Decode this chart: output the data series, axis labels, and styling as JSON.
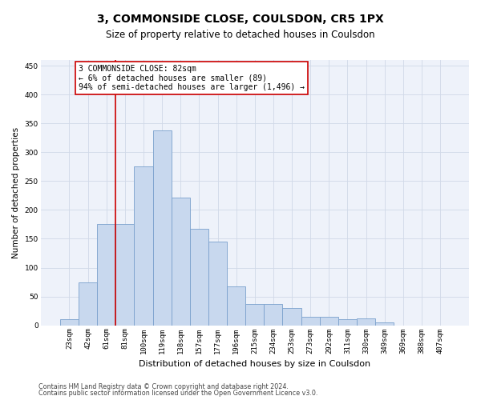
{
  "title": "3, COMMONSIDE CLOSE, COULSDON, CR5 1PX",
  "subtitle": "Size of property relative to detached houses in Coulsdon",
  "xlabel": "Distribution of detached houses by size in Coulsdon",
  "ylabel": "Number of detached properties",
  "bar_color": "#c8d8ee",
  "bar_edge_color": "#7aa0cc",
  "bar_categories": [
    "23sqm",
    "42sqm",
    "61sqm",
    "81sqm",
    "100sqm",
    "119sqm",
    "138sqm",
    "157sqm",
    "177sqm",
    "196sqm",
    "215sqm",
    "234sqm",
    "253sqm",
    "273sqm",
    "292sqm",
    "311sqm",
    "330sqm",
    "349sqm",
    "369sqm",
    "388sqm",
    "407sqm"
  ],
  "bar_values": [
    10,
    75,
    175,
    175,
    275,
    338,
    222,
    167,
    145,
    68,
    37,
    37,
    30,
    15,
    15,
    10,
    12,
    5,
    0,
    0,
    0
  ],
  "vline_x_index": 3,
  "vline_color": "#cc0000",
  "annotation_line1": "3 COMMONSIDE CLOSE: 82sqm",
  "annotation_line2": "← 6% of detached houses are smaller (89)",
  "annotation_line3": "94% of semi-detached houses are larger (1,496) →",
  "annotation_box_color": "#ffffff",
  "annotation_box_edge": "#cc0000",
  "ylim": [
    0,
    460
  ],
  "yticks": [
    0,
    50,
    100,
    150,
    200,
    250,
    300,
    350,
    400,
    450
  ],
  "footnote1": "Contains HM Land Registry data © Crown copyright and database right 2024.",
  "footnote2": "Contains public sector information licensed under the Open Government Licence v3.0.",
  "background_color": "#eef2fa",
  "grid_color": "#d0d8e8",
  "title_fontsize": 10,
  "subtitle_fontsize": 8.5,
  "xlabel_fontsize": 8,
  "ylabel_fontsize": 7.5,
  "tick_fontsize": 6.5,
  "annotation_fontsize": 7,
  "footnote_fontsize": 5.8
}
